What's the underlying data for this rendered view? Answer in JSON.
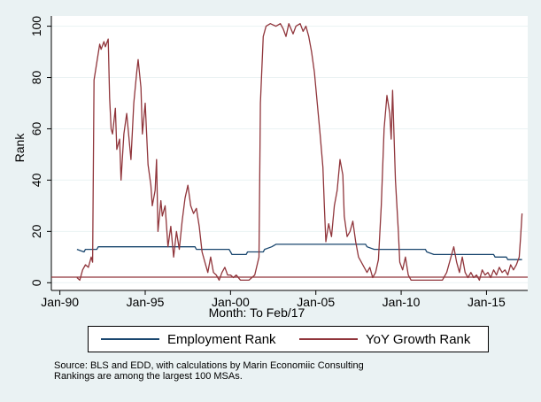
{
  "colors": {
    "background": "#eaf2f3",
    "plot_background": "#ffffff",
    "employment": "#1a476f",
    "yoy": "#90353b",
    "grid": "#eaf2f3"
  },
  "notes": [
    "Source: BLS and EDD, with calculations by Marin Economiic Consulting",
    "Rankings are among the largest 100 MSAs."
  ],
  "chart_data": {
    "type": "line",
    "title": "",
    "xlabel": "Month: To Feb/17",
    "ylabel": "Rank",
    "xlim": [
      "1989-07",
      "2017-06"
    ],
    "ylim": [
      -3,
      104
    ],
    "x_ticks": [
      "1990-01",
      "1995-01",
      "2000-01",
      "2005-01",
      "2010-01",
      "2015-01"
    ],
    "x_tick_labels": [
      "Jan-90",
      "Jan-95",
      "Jan-00",
      "Jan-05",
      "Jan-10",
      "Jan-15"
    ],
    "y_ticks": [
      0,
      20,
      40,
      60,
      80,
      100
    ],
    "y_tick_labels": [
      "0",
      "20",
      "40",
      "60",
      "80",
      "100"
    ],
    "grid": true,
    "legend_position": "bottom",
    "series": [
      {
        "name": "Employment Rank",
        "color": "#1a476f",
        "points": [
          [
            "1991-01",
            13
          ],
          [
            "1991-06",
            12
          ],
          [
            "1991-07",
            13
          ],
          [
            "1992-03",
            13
          ],
          [
            "1992-04",
            14
          ],
          [
            "1997-12",
            14
          ],
          [
            "1998-01",
            13
          ],
          [
            "1999-12",
            13
          ],
          [
            "2000-01",
            12
          ],
          [
            "2000-02",
            11
          ],
          [
            "2000-12",
            11
          ],
          [
            "2001-01",
            12
          ],
          [
            "2001-12",
            12
          ],
          [
            "2002-01",
            13
          ],
          [
            "2002-06",
            14
          ],
          [
            "2002-09",
            15
          ],
          [
            "2007-12",
            15
          ],
          [
            "2008-01",
            14
          ],
          [
            "2008-06",
            13
          ],
          [
            "2011-06",
            13
          ],
          [
            "2011-07",
            12
          ],
          [
            "2011-12",
            11
          ],
          [
            "2015-06",
            11
          ],
          [
            "2015-07",
            10
          ],
          [
            "2016-03",
            10
          ],
          [
            "2016-04",
            9
          ],
          [
            "2017-02",
            9
          ]
        ]
      },
      {
        "name": "YoY Growth Rank",
        "color": "#90353b",
        "points": [
          [
            "1991-01",
            2
          ],
          [
            "1991-03",
            1
          ],
          [
            "1991-05",
            5
          ],
          [
            "1991-07",
            7
          ],
          [
            "1991-09",
            6
          ],
          [
            "1991-11",
            10
          ],
          [
            "1991-12",
            8
          ],
          [
            "1992-01",
            79
          ],
          [
            "1992-03",
            86
          ],
          [
            "1992-05",
            93
          ],
          [
            "1992-06",
            91
          ],
          [
            "1992-08",
            94
          ],
          [
            "1992-09",
            92
          ],
          [
            "1992-11",
            95
          ],
          [
            "1992-12",
            72
          ],
          [
            "1993-01",
            60
          ],
          [
            "1993-02",
            58
          ],
          [
            "1993-04",
            68
          ],
          [
            "1993-05",
            52
          ],
          [
            "1993-07",
            56
          ],
          [
            "1993-08",
            40
          ],
          [
            "1993-10",
            58
          ],
          [
            "1993-12",
            66
          ],
          [
            "1994-01",
            60
          ],
          [
            "1994-03",
            48
          ],
          [
            "1994-05",
            70
          ],
          [
            "1994-07",
            82
          ],
          [
            "1994-08",
            87
          ],
          [
            "1994-10",
            76
          ],
          [
            "1994-11",
            58
          ],
          [
            "1995-01",
            70
          ],
          [
            "1995-03",
            46
          ],
          [
            "1995-05",
            38
          ],
          [
            "1995-06",
            30
          ],
          [
            "1995-08",
            36
          ],
          [
            "1995-09",
            48
          ],
          [
            "1995-10",
            20
          ],
          [
            "1995-12",
            32
          ],
          [
            "1996-01",
            26
          ],
          [
            "1996-03",
            30
          ],
          [
            "1996-05",
            14
          ],
          [
            "1996-07",
            22
          ],
          [
            "1996-09",
            10
          ],
          [
            "1996-11",
            20
          ],
          [
            "1997-01",
            13
          ],
          [
            "1997-03",
            24
          ],
          [
            "1997-05",
            33
          ],
          [
            "1997-07",
            38
          ],
          [
            "1997-09",
            30
          ],
          [
            "1997-11",
            27
          ],
          [
            "1998-01",
            29
          ],
          [
            "1998-03",
            22
          ],
          [
            "1998-05",
            12
          ],
          [
            "1998-07",
            8
          ],
          [
            "1998-09",
            4
          ],
          [
            "1998-11",
            10
          ],
          [
            "1999-01",
            4
          ],
          [
            "1999-03",
            3
          ],
          [
            "1999-05",
            1
          ],
          [
            "1999-07",
            4
          ],
          [
            "1999-09",
            6
          ],
          [
            "1999-11",
            3
          ],
          [
            "2000-01",
            3
          ],
          [
            "2000-03",
            2
          ],
          [
            "2000-05",
            3
          ],
          [
            "2000-08",
            1
          ],
          [
            "2000-11",
            1
          ],
          [
            "2001-02",
            1
          ],
          [
            "2001-06",
            3
          ],
          [
            "2001-09",
            10
          ],
          [
            "2001-10",
            70
          ],
          [
            "2001-12",
            96
          ],
          [
            "2002-02",
            100
          ],
          [
            "2002-05",
            101
          ],
          [
            "2002-09",
            100
          ],
          [
            "2002-12",
            101
          ],
          [
            "2003-02",
            99
          ],
          [
            "2003-04",
            96
          ],
          [
            "2003-06",
            101
          ],
          [
            "2003-09",
            97
          ],
          [
            "2003-11",
            100
          ],
          [
            "2004-02",
            101
          ],
          [
            "2004-04",
            98
          ],
          [
            "2004-06",
            100
          ],
          [
            "2004-08",
            96
          ],
          [
            "2004-10",
            90
          ],
          [
            "2004-12",
            82
          ],
          [
            "2005-02",
            70
          ],
          [
            "2005-04",
            58
          ],
          [
            "2005-06",
            45
          ],
          [
            "2005-07",
            30
          ],
          [
            "2005-08",
            16
          ],
          [
            "2005-10",
            23
          ],
          [
            "2005-12",
            18
          ],
          [
            "2006-02",
            30
          ],
          [
            "2006-04",
            36
          ],
          [
            "2006-06",
            48
          ],
          [
            "2006-08",
            42
          ],
          [
            "2006-09",
            26
          ],
          [
            "2006-11",
            18
          ],
          [
            "2007-01",
            20
          ],
          [
            "2007-03",
            24
          ],
          [
            "2007-05",
            16
          ],
          [
            "2007-07",
            10
          ],
          [
            "2007-09",
            8
          ],
          [
            "2007-11",
            6
          ],
          [
            "2008-01",
            4
          ],
          [
            "2008-03",
            6
          ],
          [
            "2008-05",
            2
          ],
          [
            "2008-07",
            4
          ],
          [
            "2008-09",
            9
          ],
          [
            "2008-11",
            30
          ],
          [
            "2009-01",
            60
          ],
          [
            "2009-03",
            73
          ],
          [
            "2009-05",
            66
          ],
          [
            "2009-06",
            56
          ],
          [
            "2009-07",
            75
          ],
          [
            "2009-09",
            40
          ],
          [
            "2009-11",
            20
          ],
          [
            "2009-12",
            8
          ],
          [
            "2010-02",
            5
          ],
          [
            "2010-04",
            10
          ],
          [
            "2010-06",
            3
          ],
          [
            "2010-08",
            1
          ],
          [
            "2010-12",
            1
          ],
          [
            "2011-06",
            1
          ],
          [
            "2011-12",
            1
          ],
          [
            "2012-06",
            1
          ],
          [
            "2012-09",
            4
          ],
          [
            "2012-12",
            10
          ],
          [
            "2013-02",
            14
          ],
          [
            "2013-04",
            8
          ],
          [
            "2013-06",
            4
          ],
          [
            "2013-08",
            10
          ],
          [
            "2013-10",
            4
          ],
          [
            "2013-12",
            2
          ],
          [
            "2014-02",
            4
          ],
          [
            "2014-04",
            2
          ],
          [
            "2014-06",
            3
          ],
          [
            "2014-08",
            1
          ],
          [
            "2014-10",
            5
          ],
          [
            "2014-12",
            3
          ],
          [
            "2015-02",
            4
          ],
          [
            "2015-04",
            2
          ],
          [
            "2015-06",
            5
          ],
          [
            "2015-08",
            3
          ],
          [
            "2015-10",
            6
          ],
          [
            "2015-12",
            4
          ],
          [
            "2016-02",
            5
          ],
          [
            "2016-04",
            3
          ],
          [
            "2016-06",
            7
          ],
          [
            "2016-08",
            5
          ],
          [
            "2016-10",
            7
          ],
          [
            "2016-12",
            10
          ],
          [
            "2017-01",
            18
          ],
          [
            "2017-02",
            27
          ]
        ]
      }
    ]
  }
}
